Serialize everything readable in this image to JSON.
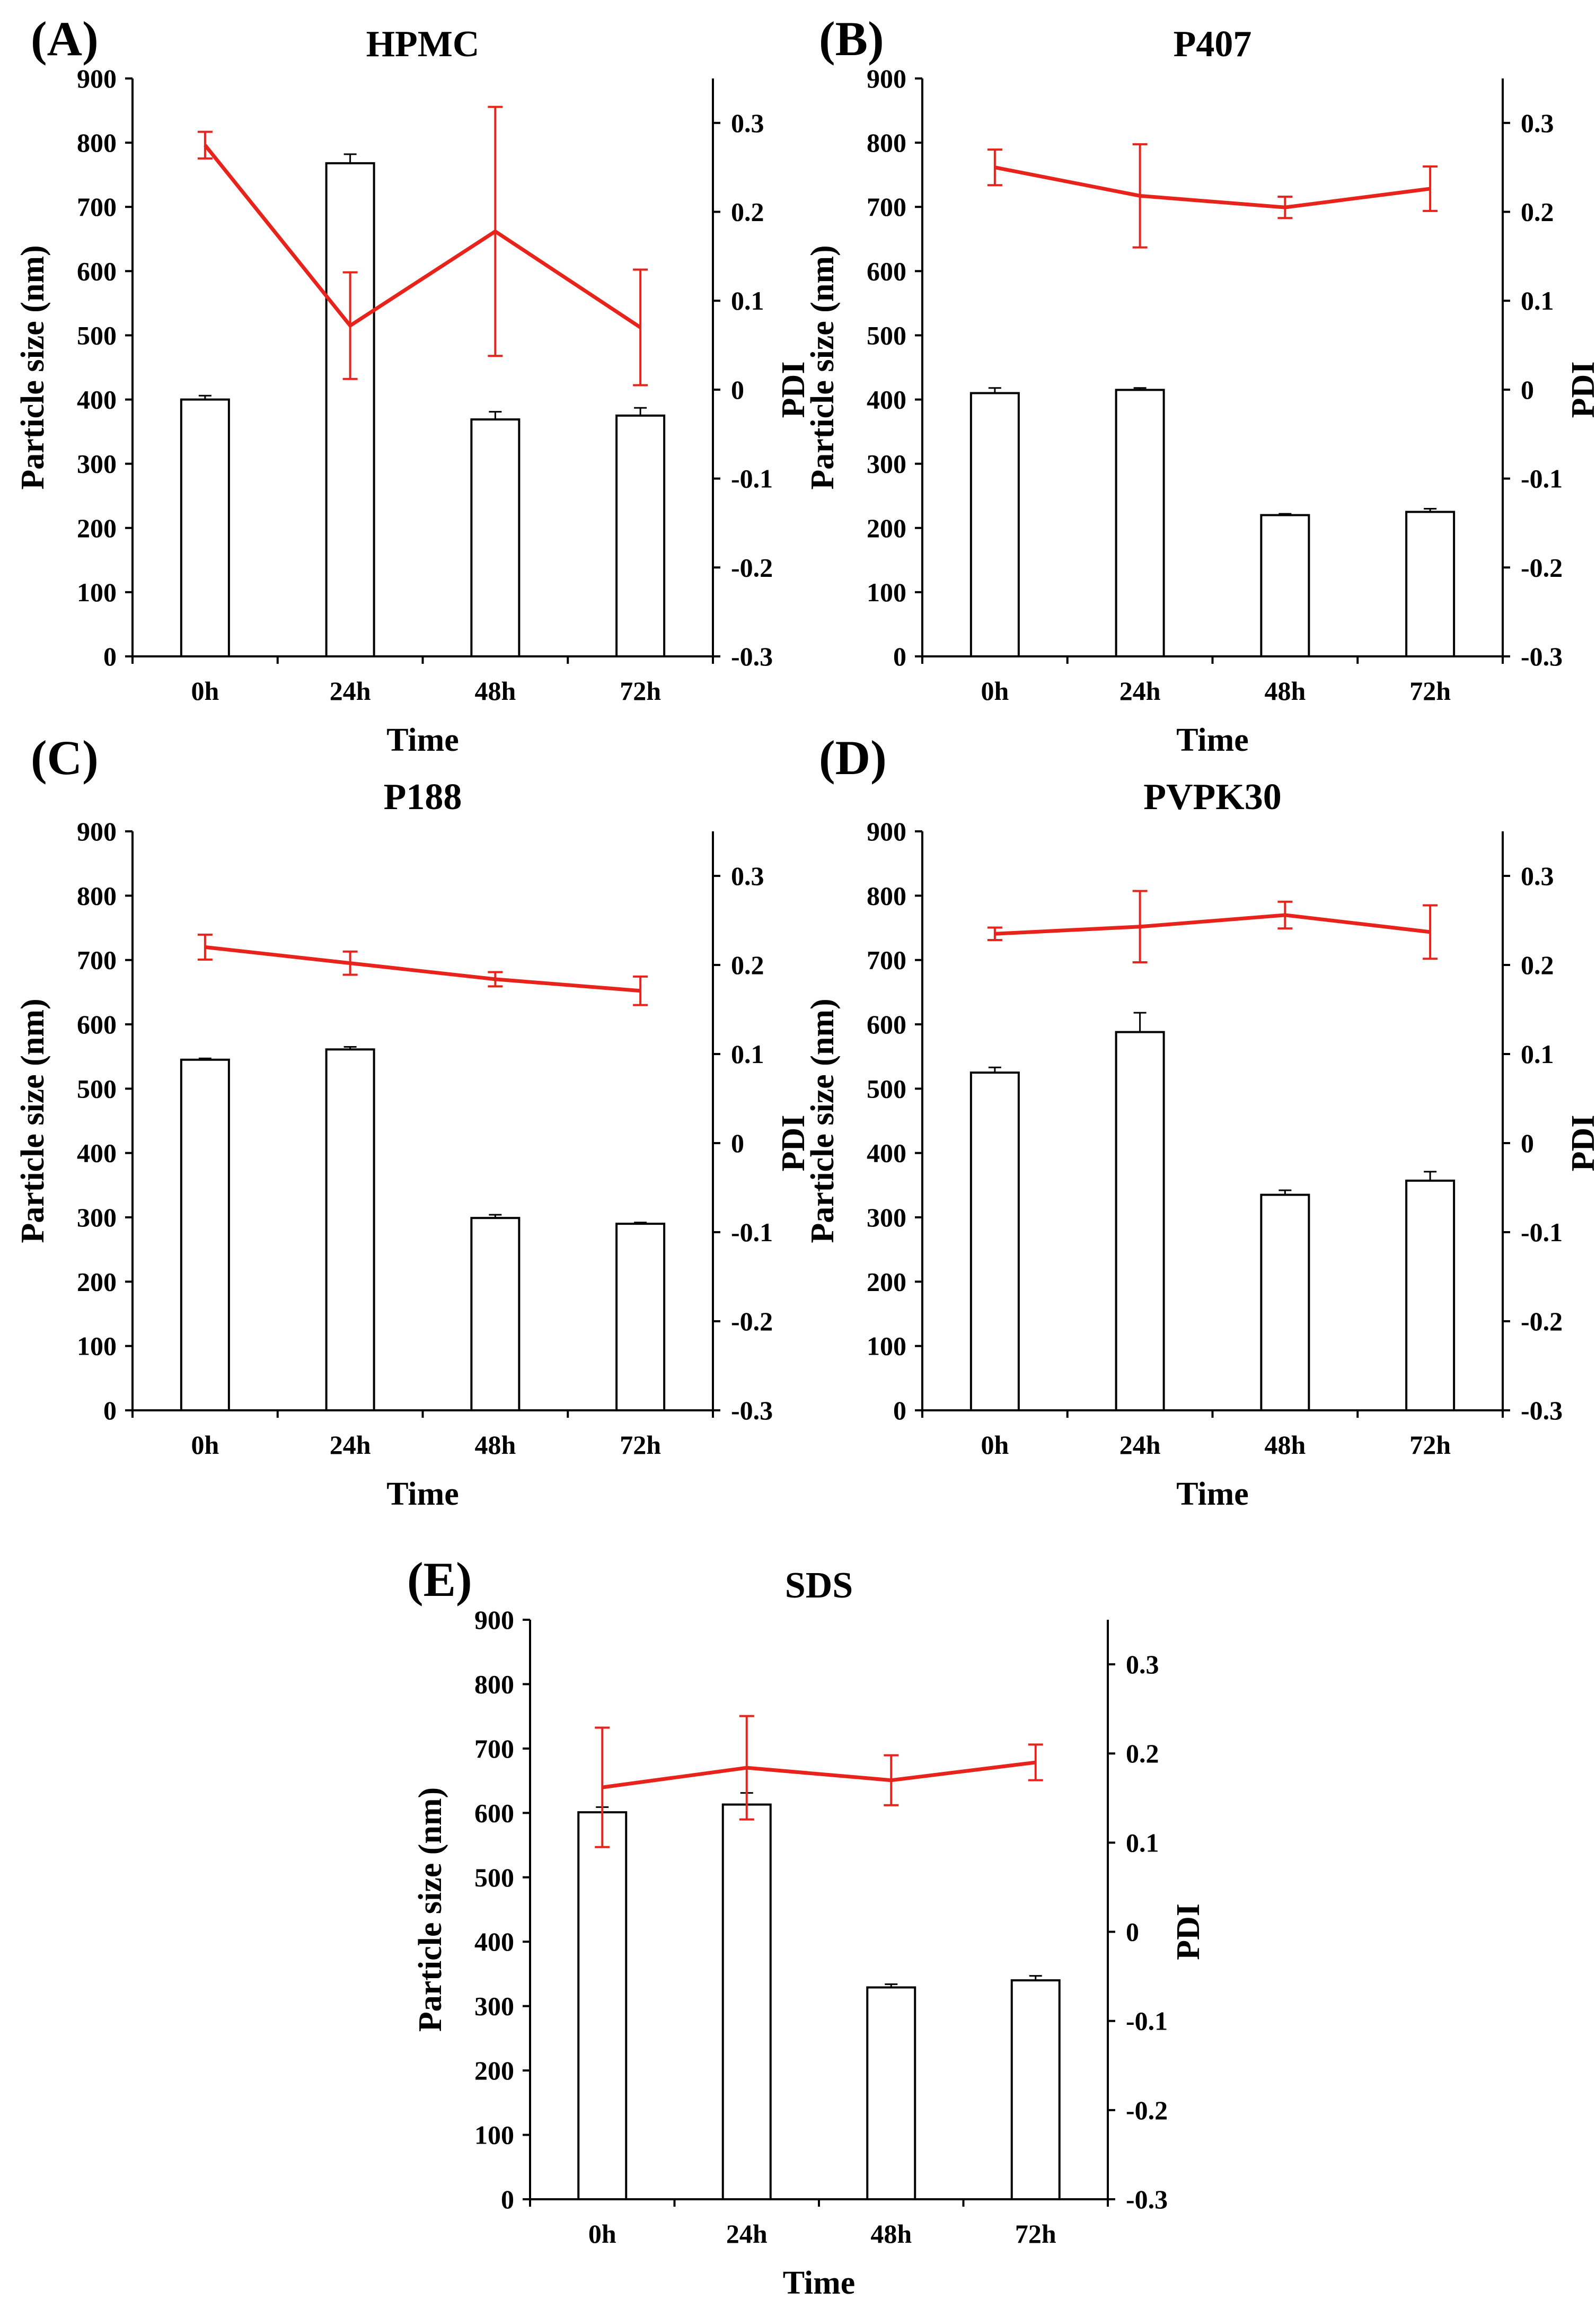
{
  "figure": {
    "description_id": "nanosuspension-stability-figure"
  },
  "colors": {
    "bar_fill": "#ffffff",
    "bar_stroke": "#000000",
    "line": "#e8231b",
    "axis": "#000000"
  },
  "axes_text": {
    "xlabel": "Time",
    "ylabel_left": "Particle size (nm)",
    "ylabel_right": "PDI",
    "left_ticks": [
      "0",
      "100",
      "200",
      "300",
      "400",
      "500",
      "600",
      "700",
      "800",
      "900"
    ],
    "right_ticks": [
      "-0.3",
      "-0.2",
      "-0.1",
      "0",
      "0.1",
      "0.2",
      "0.3"
    ]
  },
  "chart_data": [
    {
      "type": "bar",
      "panel": "(A)",
      "title": "HPMC",
      "categories": [
        "0h",
        "24h",
        "48h",
        "72h"
      ],
      "xlabel": "Time",
      "ylabel": "Particle size (nm)",
      "ylim": [
        0,
        900
      ],
      "y2label": "PDI",
      "y2lim": [
        -0.3,
        0.35
      ],
      "series": [
        {
          "name": "Particle size (nm)",
          "kind": "bar",
          "axis": "left",
          "values": [
            400,
            768,
            369,
            375
          ],
          "errors": [
            6,
            14,
            12,
            12
          ]
        },
        {
          "name": "PDI",
          "kind": "line",
          "axis": "right",
          "values": [
            0.275,
            0.072,
            0.178,
            0.07
          ],
          "errors": [
            0.015,
            0.06,
            0.14,
            0.065
          ]
        }
      ]
    },
    {
      "type": "bar",
      "panel": "(B)",
      "title": "P407",
      "categories": [
        "0h",
        "24h",
        "48h",
        "72h"
      ],
      "xlabel": "Time",
      "ylabel": "Particle size (nm)",
      "ylim": [
        0,
        900
      ],
      "y2label": "PDI",
      "y2lim": [
        -0.3,
        0.35
      ],
      "series": [
        {
          "name": "Particle size (nm)",
          "kind": "bar",
          "axis": "left",
          "values": [
            410,
            415,
            220,
            225
          ],
          "errors": [
            8,
            3,
            2,
            5
          ]
        },
        {
          "name": "PDI",
          "kind": "line",
          "axis": "right",
          "values": [
            0.25,
            0.218,
            0.205,
            0.226
          ],
          "errors": [
            0.02,
            0.058,
            0.012,
            0.025
          ]
        }
      ]
    },
    {
      "type": "bar",
      "panel": "(C)",
      "title": "P188",
      "categories": [
        "0h",
        "24h",
        "48h",
        "72h"
      ],
      "xlabel": "Time",
      "ylabel": "Particle size (nm)",
      "ylim": [
        0,
        900
      ],
      "y2label": "PDI",
      "y2lim": [
        -0.3,
        0.35
      ],
      "series": [
        {
          "name": "Particle size (nm)",
          "kind": "bar",
          "axis": "left",
          "values": [
            545,
            561,
            299,
            290
          ],
          "errors": [
            2,
            4,
            5,
            2
          ]
        },
        {
          "name": "PDI",
          "kind": "line",
          "axis": "right",
          "values": [
            0.22,
            0.202,
            0.184,
            0.171
          ],
          "errors": [
            0.014,
            0.013,
            0.008,
            0.016
          ]
        }
      ]
    },
    {
      "type": "bar",
      "panel": "(D)",
      "title": "PVPK30",
      "categories": [
        "0h",
        "24h",
        "48h",
        "72h"
      ],
      "xlabel": "Time",
      "ylabel": "Particle size (nm)",
      "ylim": [
        0,
        900
      ],
      "y2label": "PDI",
      "y2lim": [
        -0.3,
        0.35
      ],
      "series": [
        {
          "name": "Particle size (nm)",
          "kind": "bar",
          "axis": "left",
          "values": [
            525,
            588,
            335,
            357
          ],
          "errors": [
            8,
            30,
            7,
            14
          ]
        },
        {
          "name": "PDI",
          "kind": "line",
          "axis": "right",
          "values": [
            0.235,
            0.243,
            0.256,
            0.237
          ],
          "errors": [
            0.007,
            0.04,
            0.015,
            0.03
          ]
        }
      ]
    },
    {
      "type": "bar",
      "panel": "(E)",
      "title": "SDS",
      "categories": [
        "0h",
        "24h",
        "48h",
        "72h"
      ],
      "xlabel": "Time",
      "ylabel": "Particle size (nm)",
      "ylim": [
        0,
        900
      ],
      "y2label": "PDI",
      "y2lim": [
        -0.3,
        0.35
      ],
      "series": [
        {
          "name": "Particle size (nm)",
          "kind": "bar",
          "axis": "left",
          "values": [
            601,
            613,
            329,
            340
          ],
          "errors": [
            8,
            18,
            5,
            7
          ]
        },
        {
          "name": "PDI",
          "kind": "line",
          "axis": "right",
          "values": [
            0.162,
            0.184,
            0.17,
            0.19
          ],
          "errors": [
            0.067,
            0.058,
            0.028,
            0.02
          ]
        }
      ]
    }
  ]
}
